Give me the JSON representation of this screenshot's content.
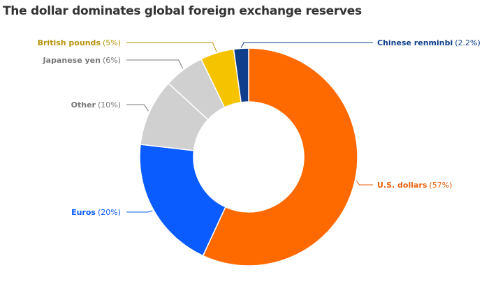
{
  "chart_data": {
    "type": "pie",
    "variant": "donut",
    "title": "The dollar dominates global foreign exchange reserves",
    "slices": [
      {
        "key": "usd",
        "label": "U.S. dollars",
        "pct_text": "(57%)",
        "value": 57,
        "color": "#ff6a00",
        "text_color": "#e8620e"
      },
      {
        "key": "eur",
        "label": "Euros",
        "pct_text": "(20%)",
        "value": 20,
        "color": "#0a5cff",
        "text_color": "#0a5cff"
      },
      {
        "key": "other",
        "label": "Other",
        "pct_text": "(10%)",
        "value": 10,
        "color": "#d0d0d0",
        "text_color": "#777777"
      },
      {
        "key": "jpy",
        "label": "Japanese yen",
        "pct_text": "(6%)",
        "value": 6,
        "color": "#d0d0d0",
        "text_color": "#777777"
      },
      {
        "key": "gbp",
        "label": "British pounds",
        "pct_text": "(5%)",
        "value": 5,
        "color": "#f5c300",
        "text_color": "#b8930a"
      },
      {
        "key": "cny",
        "label": "Chinese renminbi",
        "pct_text": "(2.2%)",
        "value": 2.2,
        "color": "#0f3f8c",
        "text_color": "#0f3f8c"
      }
    ]
  }
}
